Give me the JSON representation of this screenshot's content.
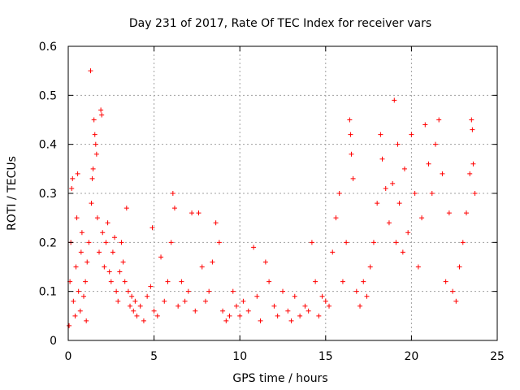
{
  "chart_data": {
    "type": "scatter",
    "title": "Day 231 of 2017, Rate Of TEC Index for receiver vars",
    "xlabel": "GPS time / hours",
    "ylabel": "ROTI / TECUs",
    "xlim": [
      0,
      25
    ],
    "ylim": [
      0,
      0.6
    ],
    "xticks": [
      "0",
      "5",
      "10",
      "15",
      "20",
      "25"
    ],
    "yticks": [
      "0",
      "0.1",
      "0.2",
      "0.3",
      "0.4",
      "0.5",
      "0.6"
    ],
    "grid": true,
    "marker": "plus",
    "color": "#ff0000",
    "series": [
      {
        "points": [
          [
            0.05,
            0.03
          ],
          [
            0.1,
            0.12
          ],
          [
            0.15,
            0.2
          ],
          [
            0.2,
            0.31
          ],
          [
            0.25,
            0.33
          ],
          [
            0.3,
            0.08
          ],
          [
            0.4,
            0.05
          ],
          [
            0.45,
            0.15
          ],
          [
            0.5,
            0.25
          ],
          [
            0.55,
            0.34
          ],
          [
            0.6,
            0.1
          ],
          [
            0.7,
            0.06
          ],
          [
            0.75,
            0.18
          ],
          [
            0.8,
            0.22
          ],
          [
            0.9,
            0.09
          ],
          [
            1.0,
            0.12
          ],
          [
            1.05,
            0.04
          ],
          [
            1.1,
            0.16
          ],
          [
            1.2,
            0.2
          ],
          [
            1.3,
            0.55
          ],
          [
            1.35,
            0.28
          ],
          [
            1.4,
            0.33
          ],
          [
            1.45,
            0.35
          ],
          [
            1.5,
            0.45
          ],
          [
            1.55,
            0.42
          ],
          [
            1.6,
            0.4
          ],
          [
            1.65,
            0.38
          ],
          [
            1.7,
            0.25
          ],
          [
            1.8,
            0.18
          ],
          [
            1.9,
            0.47
          ],
          [
            1.95,
            0.46
          ],
          [
            2.0,
            0.22
          ],
          [
            2.1,
            0.15
          ],
          [
            2.2,
            0.2
          ],
          [
            2.3,
            0.24
          ],
          [
            2.4,
            0.14
          ],
          [
            2.5,
            0.12
          ],
          [
            2.6,
            0.18
          ],
          [
            2.7,
            0.21
          ],
          [
            2.8,
            0.1
          ],
          [
            2.9,
            0.08
          ],
          [
            3.0,
            0.14
          ],
          [
            3.1,
            0.2
          ],
          [
            3.2,
            0.16
          ],
          [
            3.3,
            0.12
          ],
          [
            3.4,
            0.27
          ],
          [
            3.5,
            0.1
          ],
          [
            3.6,
            0.07
          ],
          [
            3.7,
            0.09
          ],
          [
            3.8,
            0.06
          ],
          [
            3.9,
            0.08
          ],
          [
            4.0,
            0.05
          ],
          [
            4.2,
            0.07
          ],
          [
            4.4,
            0.04
          ],
          [
            4.6,
            0.09
          ],
          [
            4.8,
            0.11
          ],
          [
            4.9,
            0.23
          ],
          [
            5.0,
            0.06
          ],
          [
            5.2,
            0.05
          ],
          [
            5.4,
            0.17
          ],
          [
            5.6,
            0.08
          ],
          [
            5.8,
            0.12
          ],
          [
            6.0,
            0.2
          ],
          [
            6.1,
            0.3
          ],
          [
            6.2,
            0.27
          ],
          [
            6.4,
            0.07
          ],
          [
            6.6,
            0.12
          ],
          [
            6.8,
            0.08
          ],
          [
            7.0,
            0.1
          ],
          [
            7.2,
            0.26
          ],
          [
            7.4,
            0.06
          ],
          [
            7.6,
            0.26
          ],
          [
            7.8,
            0.15
          ],
          [
            8.0,
            0.08
          ],
          [
            8.2,
            0.1
          ],
          [
            8.4,
            0.16
          ],
          [
            8.6,
            0.24
          ],
          [
            8.8,
            0.2
          ],
          [
            9.0,
            0.06
          ],
          [
            9.2,
            0.04
          ],
          [
            9.4,
            0.05
          ],
          [
            9.6,
            0.1
          ],
          [
            9.8,
            0.07
          ],
          [
            10.0,
            0.05
          ],
          [
            10.2,
            0.08
          ],
          [
            10.5,
            0.06
          ],
          [
            10.8,
            0.19
          ],
          [
            11.0,
            0.09
          ],
          [
            11.2,
            0.04
          ],
          [
            11.5,
            0.16
          ],
          [
            11.7,
            0.12
          ],
          [
            12.0,
            0.07
          ],
          [
            12.2,
            0.05
          ],
          [
            12.5,
            0.1
          ],
          [
            12.8,
            0.06
          ],
          [
            13.0,
            0.04
          ],
          [
            13.2,
            0.09
          ],
          [
            13.5,
            0.05
          ],
          [
            13.8,
            0.07
          ],
          [
            14.0,
            0.06
          ],
          [
            14.2,
            0.2
          ],
          [
            14.4,
            0.12
          ],
          [
            14.6,
            0.05
          ],
          [
            14.8,
            0.09
          ],
          [
            15.0,
            0.08
          ],
          [
            15.2,
            0.07
          ],
          [
            15.4,
            0.18
          ],
          [
            15.6,
            0.25
          ],
          [
            15.8,
            0.3
          ],
          [
            16.0,
            0.12
          ],
          [
            16.2,
            0.2
          ],
          [
            16.4,
            0.45
          ],
          [
            16.45,
            0.42
          ],
          [
            16.5,
            0.38
          ],
          [
            16.6,
            0.33
          ],
          [
            16.8,
            0.1
          ],
          [
            17.0,
            0.07
          ],
          [
            17.2,
            0.12
          ],
          [
            17.4,
            0.09
          ],
          [
            17.6,
            0.15
          ],
          [
            17.8,
            0.2
          ],
          [
            18.0,
            0.28
          ],
          [
            18.2,
            0.42
          ],
          [
            18.3,
            0.37
          ],
          [
            18.5,
            0.31
          ],
          [
            18.7,
            0.24
          ],
          [
            18.9,
            0.32
          ],
          [
            19.0,
            0.49
          ],
          [
            19.1,
            0.2
          ],
          [
            19.2,
            0.4
          ],
          [
            19.3,
            0.28
          ],
          [
            19.5,
            0.18
          ],
          [
            19.6,
            0.35
          ],
          [
            19.8,
            0.22
          ],
          [
            20.0,
            0.42
          ],
          [
            20.2,
            0.3
          ],
          [
            20.4,
            0.15
          ],
          [
            20.6,
            0.25
          ],
          [
            20.8,
            0.44
          ],
          [
            21.0,
            0.36
          ],
          [
            21.2,
            0.3
          ],
          [
            21.4,
            0.4
          ],
          [
            21.6,
            0.45
          ],
          [
            21.8,
            0.34
          ],
          [
            22.0,
            0.12
          ],
          [
            22.2,
            0.26
          ],
          [
            22.4,
            0.1
          ],
          [
            22.6,
            0.08
          ],
          [
            22.8,
            0.15
          ],
          [
            23.0,
            0.2
          ],
          [
            23.2,
            0.26
          ],
          [
            23.4,
            0.34
          ],
          [
            23.5,
            0.45
          ],
          [
            23.55,
            0.43
          ],
          [
            23.6,
            0.36
          ],
          [
            23.7,
            0.3
          ]
        ]
      }
    ]
  }
}
